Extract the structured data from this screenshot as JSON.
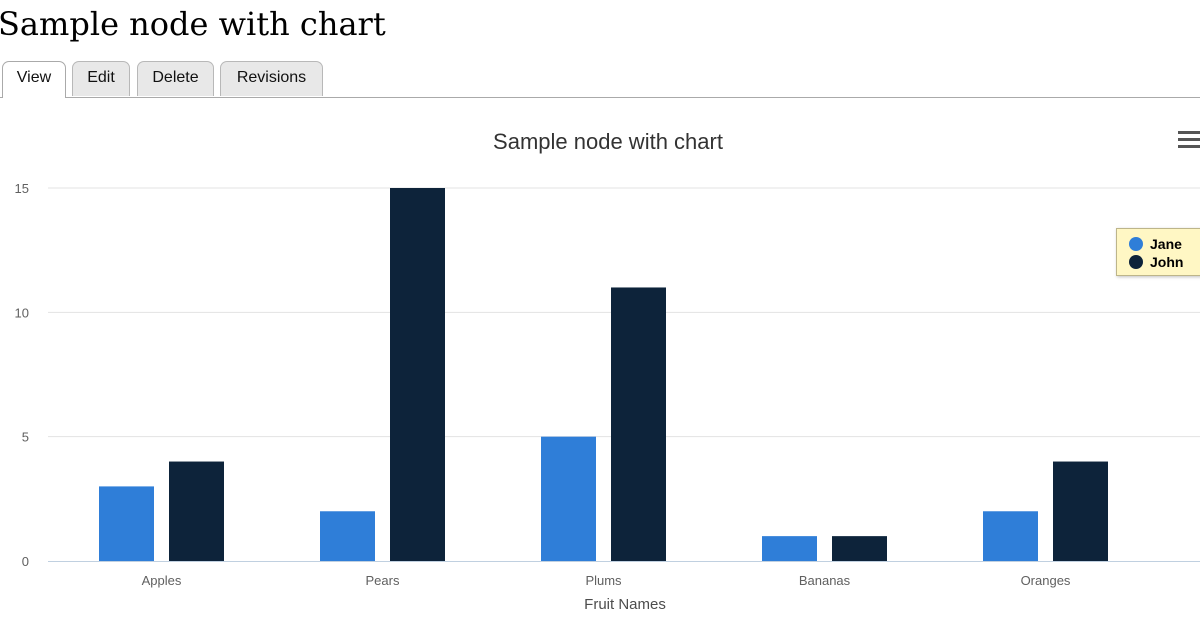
{
  "page": {
    "title": "Sample node with chart"
  },
  "tabs": [
    {
      "label": "View",
      "active": true
    },
    {
      "label": "Edit",
      "active": false
    },
    {
      "label": "Delete",
      "active": false
    },
    {
      "label": "Revisions",
      "active": false
    }
  ],
  "chart_menu_icon": "hamburger-menu-icon",
  "chart_data": {
    "type": "bar",
    "title": "Sample node with chart",
    "xlabel": "Fruit Names",
    "ylabel": "",
    "categories": [
      "Apples",
      "Pears",
      "Plums",
      "Bananas",
      "Oranges"
    ],
    "series": [
      {
        "name": "Jane",
        "values": [
          3,
          2,
          5,
          1,
          2
        ],
        "color": "#2f7ed8"
      },
      {
        "name": "John",
        "values": [
          4,
          15,
          11,
          1,
          4
        ],
        "color": "#0d233a"
      }
    ],
    "ylim": [
      0,
      15
    ],
    "yticks": [
      0,
      5,
      10,
      15
    ],
    "grid": true,
    "legend": "right"
  }
}
